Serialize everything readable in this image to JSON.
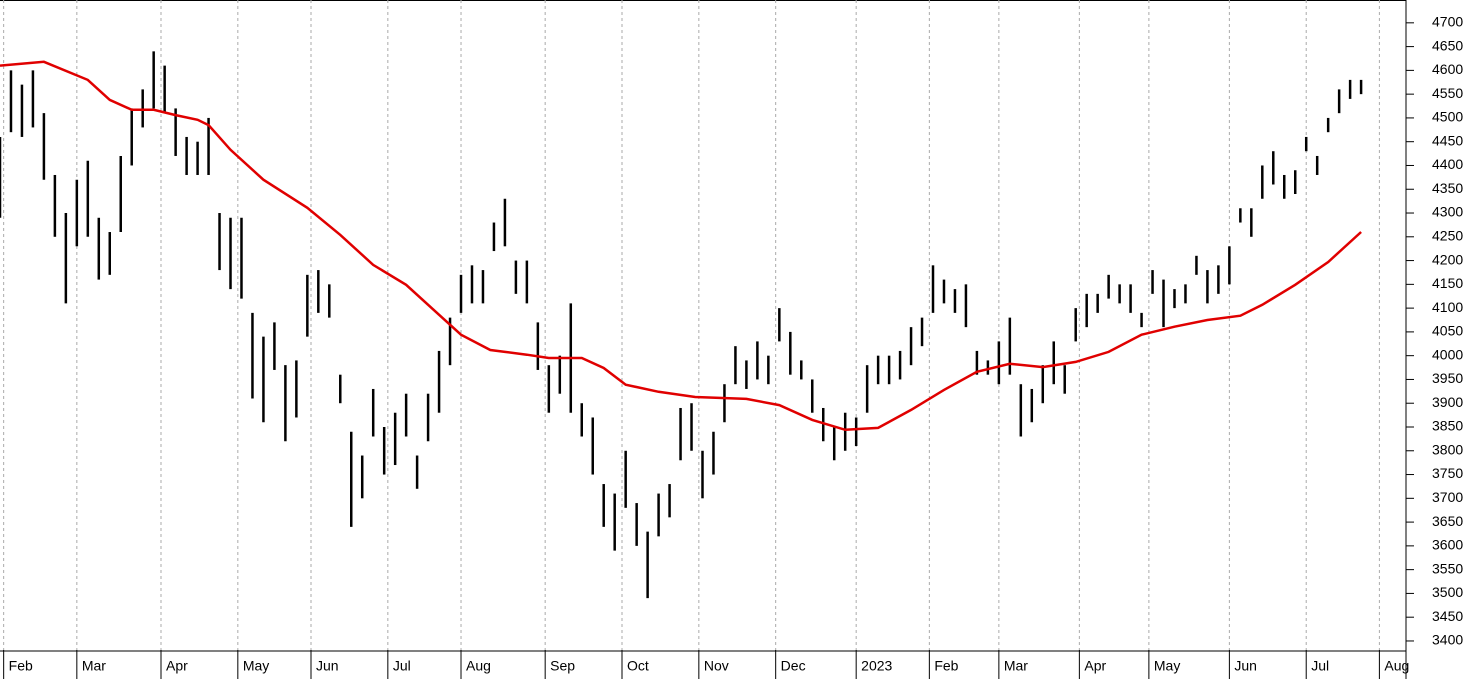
{
  "chart_data": {
    "type": "range",
    "x": [
      0,
      3,
      6,
      9,
      12,
      15,
      18,
      21,
      24,
      27,
      30,
      33,
      36,
      39,
      42,
      45,
      48,
      51,
      54,
      57,
      60,
      63,
      66,
      69,
      72,
      75,
      78,
      81,
      84,
      87,
      90,
      93,
      96,
      99,
      102,
      105,
      108,
      111,
      114,
      117,
      120,
      123,
      126,
      129,
      132,
      135,
      138,
      141,
      144,
      147,
      150,
      153,
      156,
      159,
      162,
      165,
      168,
      171,
      174,
      177,
      180,
      183,
      186,
      189,
      192,
      195,
      198,
      201,
      204,
      207,
      210,
      213,
      216,
      219,
      222,
      225,
      228,
      231,
      234,
      237,
      240,
      243,
      246,
      249,
      252,
      255,
      258,
      261,
      264,
      267,
      270,
      273,
      276,
      279,
      282,
      285,
      288,
      291,
      294,
      297,
      300,
      303,
      306,
      309,
      312,
      315,
      318,
      321,
      324,
      327,
      330,
      333,
      336,
      339,
      342,
      345,
      348,
      351,
      354,
      357,
      360,
      363,
      366,
      369,
      372
    ],
    "high": [
      4460,
      4600,
      4570,
      4600,
      4510,
      4380,
      4300,
      4370,
      4410,
      4290,
      4260,
      4420,
      4520,
      4560,
      4640,
      4610,
      4520,
      4460,
      4450,
      4500,
      4300,
      4290,
      4290,
      4090,
      4040,
      4070,
      3980,
      3990,
      4170,
      4180,
      4150,
      3960,
      3840,
      3790,
      3930,
      3850,
      3880,
      3920,
      3790,
      3920,
      4010,
      4080,
      4170,
      4190,
      4180,
      4280,
      4330,
      4200,
      4200,
      4070,
      3980,
      4000,
      4110,
      3900,
      3870,
      3730,
      3710,
      3800,
      3690,
      3630,
      3710,
      3730,
      3890,
      3900,
      3800,
      3840,
      3940,
      4020,
      3990,
      4030,
      4000,
      4100,
      4050,
      3990,
      3950,
      3890,
      3850,
      3880,
      3870,
      3980,
      4000,
      4000,
      4010,
      4060,
      4080,
      4190,
      4160,
      4140,
      4150,
      4010,
      3990,
      4030,
      4080,
      3940,
      3930,
      3980,
      4030,
      3980,
      4100,
      4130,
      4130,
      4170,
      4150,
      4150,
      4090,
      4180,
      4160,
      4140,
      4150,
      4210,
      4180,
      4190,
      4230,
      4310,
      4310,
      4400,
      4430,
      4380,
      4390,
      4460,
      4420,
      4500,
      4560,
      4580,
      4580
    ],
    "low": [
      4290,
      4470,
      4460,
      4480,
      4370,
      4250,
      4110,
      4230,
      4250,
      4160,
      4170,
      4260,
      4400,
      4480,
      4520,
      4510,
      4420,
      4380,
      4380,
      4380,
      4180,
      4140,
      4120,
      3910,
      3860,
      3970,
      3820,
      3870,
      4040,
      4090,
      4080,
      3900,
      3640,
      3700,
      3830,
      3750,
      3770,
      3830,
      3720,
      3820,
      3880,
      3980,
      4090,
      4110,
      4110,
      4220,
      4230,
      4130,
      4110,
      3970,
      3880,
      3920,
      3880,
      3830,
      3750,
      3640,
      3590,
      3680,
      3600,
      3490,
      3620,
      3660,
      3780,
      3800,
      3700,
      3750,
      3860,
      3940,
      3930,
      3950,
      3940,
      4030,
      3960,
      3950,
      3880,
      3820,
      3780,
      3800,
      3810,
      3880,
      3940,
      3940,
      3950,
      3980,
      4020,
      4090,
      4110,
      4090,
      4060,
      3960,
      3960,
      3940,
      3960,
      3830,
      3860,
      3900,
      3940,
      3920,
      4030,
      4060,
      4090,
      4120,
      4110,
      4090,
      4060,
      4130,
      4060,
      4100,
      4110,
      4170,
      4110,
      4130,
      4150,
      4280,
      4250,
      4330,
      4360,
      4330,
      4340,
      4430,
      4380,
      4470,
      4510,
      4540,
      4550
    ],
    "bar_color": "#000000",
    "ma": {
      "color": "#e00000",
      "x": [
        0,
        12,
        24,
        30,
        36,
        42,
        48,
        54,
        57,
        63,
        72,
        84,
        93,
        102,
        111,
        120,
        126,
        134,
        138,
        144,
        150,
        159,
        165,
        171,
        180,
        190,
        204,
        213,
        222,
        231,
        240,
        249,
        258,
        267,
        276,
        285,
        294,
        303,
        312,
        321,
        330,
        339,
        345,
        354,
        363,
        372
      ],
      "values": [
        4610,
        4618,
        4580,
        4538,
        4517,
        4517,
        4506,
        4496,
        4485,
        4433,
        4370,
        4311,
        4254,
        4191,
        4149,
        4086,
        4044,
        4012,
        4008,
        4002,
        3995,
        3995,
        3974,
        3939,
        3924,
        3913,
        3909,
        3896,
        3865,
        3844,
        3848,
        3886,
        3928,
        3966,
        3983,
        3976,
        3987,
        4008,
        4044,
        4061,
        4075,
        4084,
        4107,
        4149,
        4197,
        4260
      ]
    },
    "xlim": [
      0,
      384
    ],
    "xticks": [
      {
        "value": 1,
        "label": "Feb"
      },
      {
        "value": 21,
        "label": "Mar"
      },
      {
        "value": 44,
        "label": "Apr"
      },
      {
        "value": 65,
        "label": "May"
      },
      {
        "value": 85,
        "label": "Jun"
      },
      {
        "value": 106,
        "label": "Jul"
      },
      {
        "value": 126,
        "label": "Aug"
      },
      {
        "value": 149,
        "label": "Sep"
      },
      {
        "value": 170,
        "label": "Oct"
      },
      {
        "value": 191,
        "label": "Nov"
      },
      {
        "value": 212,
        "label": "Dec"
      },
      {
        "value": 234,
        "label": "2023"
      },
      {
        "value": 254,
        "label": "Feb"
      },
      {
        "value": 273,
        "label": "Mar"
      },
      {
        "value": 295,
        "label": "Apr"
      },
      {
        "value": 314,
        "label": "May"
      },
      {
        "value": 336,
        "label": "Jun"
      },
      {
        "value": 357,
        "label": "Jul"
      },
      {
        "value": 377,
        "label": "Aug"
      }
    ],
    "ylim": [
      3381,
      4748
    ],
    "yticks": [
      3400,
      3450,
      3500,
      3550,
      3600,
      3650,
      3700,
      3750,
      3800,
      3850,
      3900,
      3950,
      4000,
      4050,
      4100,
      4150,
      4200,
      4250,
      4300,
      4350,
      4400,
      4450,
      4500,
      4550,
      4600,
      4650,
      4700
    ],
    "grid": true
  }
}
